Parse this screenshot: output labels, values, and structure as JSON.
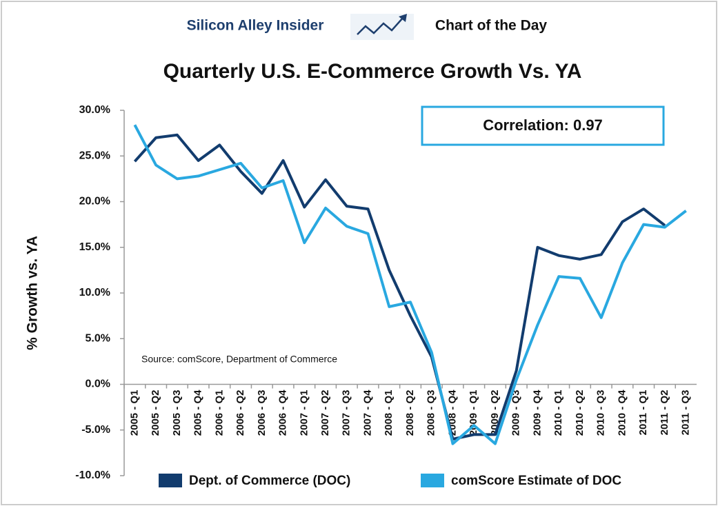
{
  "chart_data": {
    "type": "line",
    "header_left": "Silicon Alley Insider",
    "header_right": "Chart of the Day",
    "title": "Quarterly U.S. E-Commerce Growth Vs. YA",
    "y_label": "% Growth vs. YA",
    "annotations": [
      "Correlation: 0.97",
      "Source: comScore, Department of Commerce"
    ],
    "categories": [
      "2005 - Q1",
      "2005 - Q2",
      "2005 - Q3",
      "2005 - Q4",
      "2006 - Q1",
      "2006 - Q2",
      "2006 - Q3",
      "2006 - Q4",
      "2007 - Q1",
      "2007 - Q2",
      "2007 - Q3",
      "2007 - Q4",
      "2008 - Q1",
      "2008 - Q2",
      "2008 - Q3",
      "2008 - Q4",
      "2009 - Q1",
      "2009 - Q2",
      "2009 - Q3",
      "2009 - Q4",
      "2010 - Q1",
      "2010 - Q2",
      "2010 - Q3",
      "2010 - Q4",
      "2011 - Q1",
      "2011 - Q2",
      "2011 - Q3"
    ],
    "series": [
      {
        "name": "Dept. of Commerce (DOC)",
        "color": "#123c6e",
        "values": [
          24.4,
          27.0,
          27.3,
          24.5,
          26.2,
          23.3,
          20.9,
          24.5,
          19.4,
          22.4,
          19.5,
          19.2,
          12.5,
          7.5,
          3.0,
          -6.0,
          -5.5,
          -5.5,
          1.5,
          15.0,
          14.1,
          13.7,
          14.2,
          17.8,
          19.2,
          17.4,
          null
        ]
      },
      {
        "name": "comScore Estimate of DOC",
        "color": "#29a8e0",
        "values": [
          28.4,
          24.0,
          22.5,
          22.8,
          23.5,
          24.2,
          21.5,
          22.3,
          15.5,
          19.3,
          17.3,
          16.5,
          8.5,
          9.0,
          3.5,
          -6.5,
          -4.5,
          -6.5,
          0.5,
          6.5,
          11.8,
          11.6,
          7.3,
          13.3,
          17.5,
          17.2,
          19.0
        ]
      }
    ],
    "ylim": [
      -10,
      30
    ],
    "yticks": [
      {
        "value": -10,
        "label": "-10.0%"
      },
      {
        "value": -5,
        "label": "-5.0%"
      },
      {
        "value": 0,
        "label": "0.0%"
      },
      {
        "value": 5,
        "label": "5.0%"
      },
      {
        "value": 10,
        "label": "10.0%"
      },
      {
        "value": 15,
        "label": "15.0%"
      },
      {
        "value": 20,
        "label": "20.0%"
      },
      {
        "value": 25,
        "label": "25.0%"
      },
      {
        "value": 30,
        "label": "30.0%"
      }
    ],
    "legend": "bottom",
    "grid": false
  }
}
